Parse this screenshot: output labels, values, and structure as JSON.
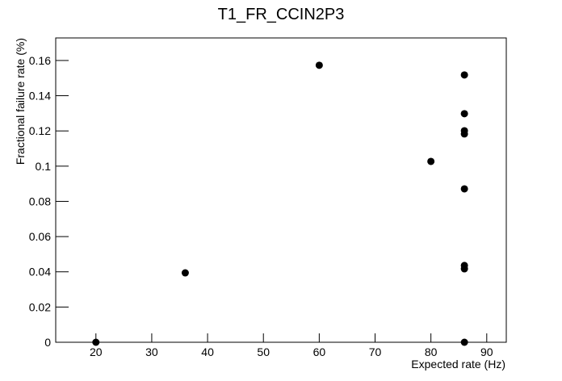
{
  "chart_data": {
    "type": "scatter",
    "title": "T1_FR_CCIN2P3",
    "x_label": "Expected rate (Hz)",
    "y_label": "Fractional failure rate (%)",
    "x": [
      20,
      36,
      60,
      80,
      86,
      86,
      86,
      86,
      86,
      86,
      86,
      86
    ],
    "values": [
      0,
      0.0394,
      0.1573,
      0.1027,
      0.1518,
      0.1298,
      0.1201,
      0.1183,
      0.0871,
      0.0436,
      0.0417,
      0
    ],
    "color": "#000000",
    "xlim": [
      12.8,
      93.5
    ],
    "xticks": [
      20,
      30,
      40,
      50,
      60,
      70,
      80,
      90
    ],
    "ylim": [
      0,
      0.1728
    ],
    "yticks": [
      0,
      0.02,
      0.04,
      0.06,
      0.08,
      0.1,
      0.12,
      0.14,
      0.16
    ],
    "grid": false
  }
}
